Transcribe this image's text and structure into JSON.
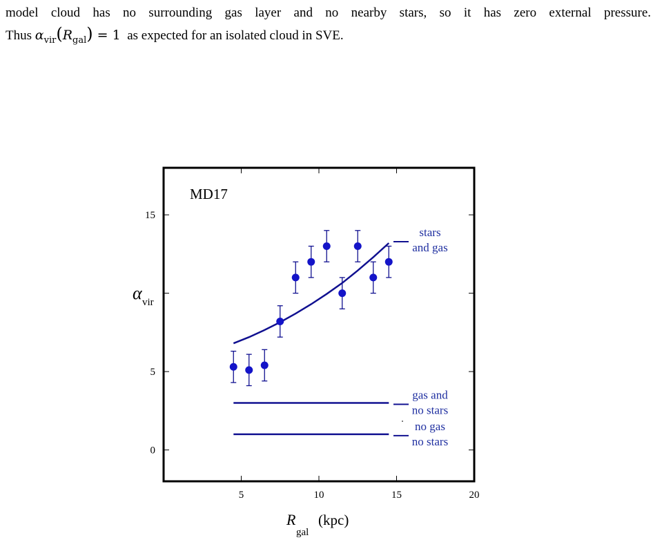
{
  "paragraph": {
    "line1": "model cloud has no surrounding gas layer and no nearby stars, so it has zero external pressure.",
    "line2_prefix": "Thus",
    "line2_alpha": "α",
    "line2_sub": "vir",
    "line2_paren_open": "(",
    "line2_R": "R",
    "line2_Rsub": "gal",
    "line2_paren_close": ")",
    "line2_eq": "= 1",
    "line2_suffix": "as expected for an isolated cloud in SVE."
  },
  "chart_data": {
    "type": "scatter",
    "title": "",
    "panel_label": "MD17",
    "xlabel": "R",
    "xlabel_sub": "gal",
    "xlabel_unit": "(kpc)",
    "ylabel": "α",
    "ylabel_sub": "vir",
    "xlim": [
      0,
      20
    ],
    "ylim": [
      -2,
      18
    ],
    "xticks": [
      5,
      10,
      15,
      20
    ],
    "yticks": [
      0,
      5,
      15
    ],
    "grid": false,
    "points": {
      "x": [
        4.5,
        5.5,
        6.5,
        7.5,
        8.5,
        9.5,
        10.5,
        11.5,
        12.5,
        13.5,
        14.5
      ],
      "y": [
        5.3,
        5.1,
        5.4,
        8.2,
        11.0,
        12.0,
        13.0,
        10.0,
        13.0,
        11.0,
        12.0
      ],
      "err": [
        1.0,
        1.0,
        1.0,
        1.0,
        1.0,
        1.0,
        1.0,
        1.0,
        1.0,
        1.0,
        1.0
      ]
    },
    "series": [
      {
        "name": "stars and gas",
        "label_lines": [
          "stars",
          "and gas"
        ],
        "x": [
          4.5,
          5.5,
          6.5,
          7.5,
          8.5,
          9.5,
          10.5,
          11.5,
          12.5,
          13.5,
          14.5
        ],
        "y": [
          6.8,
          7.2,
          7.65,
          8.15,
          8.7,
          9.3,
          9.95,
          10.65,
          11.45,
          12.3,
          13.2
        ]
      },
      {
        "name": "gas and no stars",
        "label_lines": [
          "gas and",
          "no stars"
        ],
        "x": [
          4.5,
          14.5
        ],
        "y": [
          3.0,
          3.0
        ]
      },
      {
        "name": "no gas no stars",
        "label_lines": [
          "no gas",
          "no stars"
        ],
        "x": [
          4.5,
          14.5
        ],
        "y": [
          1.0,
          1.0
        ]
      }
    ],
    "colors": {
      "data": "#1414c8",
      "lines": "#101090",
      "labels": "#1f2fa0",
      "axes": "#000000"
    }
  }
}
